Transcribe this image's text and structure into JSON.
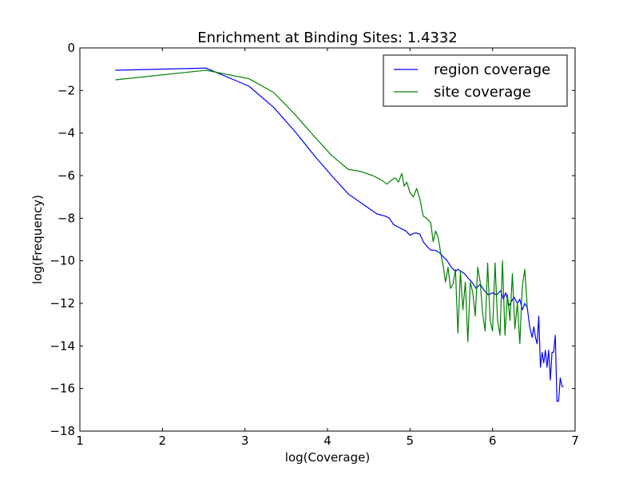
{
  "chart_data": {
    "type": "line",
    "title": "Enrichment at Binding Sites: 1.4332",
    "xlabel": "log(Coverage)",
    "ylabel": "log(Frequency)",
    "xlim": [
      1,
      7
    ],
    "ylim": [
      -18,
      0
    ],
    "xticks": [
      1,
      2,
      3,
      4,
      5,
      6,
      7
    ],
    "yticks": [
      0,
      -2,
      -4,
      -6,
      -8,
      -10,
      -12,
      -14,
      -16,
      -18
    ],
    "grid": false,
    "legend_position": "top-right",
    "series": [
      {
        "name": "region coverage",
        "color": "#0000ff",
        "x": [
          1.43,
          2.53,
          3.05,
          3.35,
          3.6,
          3.85,
          4.05,
          4.25,
          4.45,
          4.6,
          4.7,
          4.75,
          4.8,
          4.85,
          4.9,
          4.95,
          5.0,
          5.05,
          5.08,
          5.12,
          5.16,
          5.2,
          5.25,
          5.3,
          5.35,
          5.4,
          5.45,
          5.5,
          5.55,
          5.58,
          5.62,
          5.66,
          5.7,
          5.75,
          5.8,
          5.85,
          5.9,
          5.95,
          6.0,
          6.05,
          6.1,
          6.13,
          6.16,
          6.2,
          6.23,
          6.26,
          6.3,
          6.33,
          6.36,
          6.39,
          6.42,
          6.45,
          6.48,
          6.5,
          6.52,
          6.54,
          6.56,
          6.58,
          6.6,
          6.62,
          6.64,
          6.66,
          6.68,
          6.7,
          6.72,
          6.74,
          6.76,
          6.78,
          6.8,
          6.82,
          6.84,
          6.86
        ],
        "y": [
          -1.05,
          -0.95,
          -1.8,
          -2.8,
          -3.9,
          -5.1,
          -6.0,
          -6.85,
          -7.4,
          -7.8,
          -7.9,
          -8.0,
          -8.3,
          -8.4,
          -8.5,
          -8.6,
          -8.8,
          -8.7,
          -8.7,
          -8.75,
          -9.1,
          -9.3,
          -9.5,
          -9.5,
          -9.6,
          -9.8,
          -10.0,
          -10.3,
          -10.5,
          -10.4,
          -10.5,
          -10.6,
          -10.8,
          -11.0,
          -11.3,
          -11.1,
          -11.4,
          -11.6,
          -11.5,
          -11.6,
          -11.4,
          -11.8,
          -11.5,
          -12.1,
          -11.9,
          -11.7,
          -12.0,
          -11.8,
          -12.3,
          -12.0,
          -12.2,
          -13.1,
          -13.6,
          -13.1,
          -13.6,
          -13.9,
          -12.6,
          -15.0,
          -14.3,
          -14.8,
          -14.2,
          -15.0,
          -14.2,
          -15.6,
          -14.3,
          -14.3,
          -13.5,
          -16.6,
          -16.6,
          -15.5,
          -15.9,
          -15.9
        ]
      },
      {
        "name": "site coverage",
        "color": "#008000",
        "x": [
          1.43,
          2.53,
          3.05,
          3.35,
          3.6,
          3.85,
          4.05,
          4.25,
          4.4,
          4.55,
          4.65,
          4.72,
          4.78,
          4.82,
          4.86,
          4.9,
          4.93,
          4.96,
          5.0,
          5.04,
          5.08,
          5.12,
          5.16,
          5.2,
          5.25,
          5.28,
          5.31,
          5.34,
          5.37,
          5.4,
          5.43,
          5.46,
          5.49,
          5.52,
          5.55,
          5.58,
          5.61,
          5.64,
          5.67,
          5.7,
          5.73,
          5.76,
          5.79,
          5.82,
          5.85,
          5.88,
          5.91,
          5.94,
          5.97,
          6.0,
          6.03,
          6.06,
          6.09,
          6.12,
          6.15,
          6.18,
          6.21,
          6.24,
          6.27,
          6.3,
          6.33,
          6.36,
          6.39,
          6.42
        ],
        "y": [
          -1.5,
          -1.05,
          -1.45,
          -2.1,
          -3.1,
          -4.2,
          -5.05,
          -5.7,
          -5.8,
          -6.0,
          -6.2,
          -6.4,
          -6.2,
          -6.1,
          -6.3,
          -5.9,
          -6.5,
          -6.3,
          -6.8,
          -7.0,
          -6.6,
          -7.1,
          -7.9,
          -8.0,
          -8.2,
          -9.1,
          -8.6,
          -8.9,
          -9.6,
          -10.2,
          -11.0,
          -10.3,
          -11.3,
          -11.1,
          -10.4,
          -13.4,
          -10.5,
          -12.3,
          -11.0,
          -13.8,
          -11.0,
          -11.5,
          -12.6,
          -10.3,
          -11.0,
          -12.5,
          -13.3,
          -10.1,
          -12.8,
          -13.3,
          -10.1,
          -12.8,
          -13.5,
          -10.0,
          -13.5,
          -11.6,
          -12.8,
          -10.6,
          -13.2,
          -12.0,
          -13.9,
          -11.2,
          -10.4,
          -12.2
        ]
      }
    ]
  }
}
